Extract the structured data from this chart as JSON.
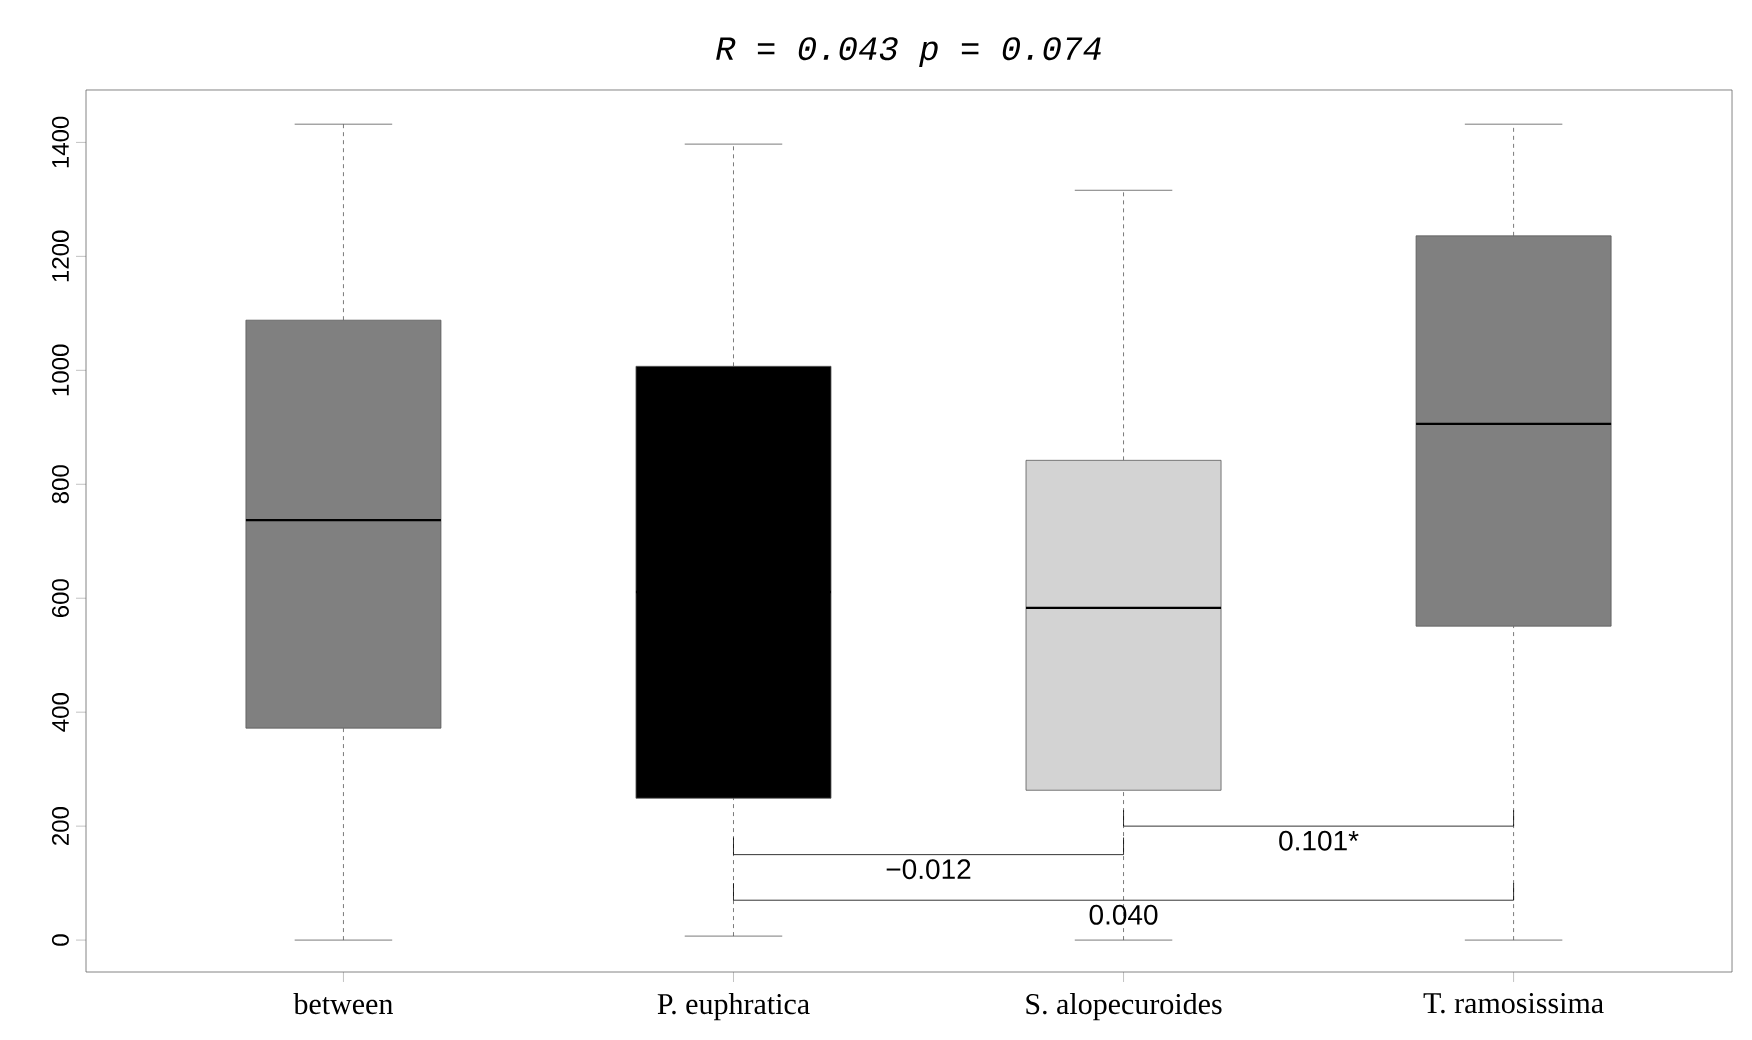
{
  "chart_data": {
    "type": "box",
    "title": "R = 0.043    p = 0.074",
    "categories": [
      "between",
      "P. euphratica",
      "S. alopecuroides",
      "T. ramosissima"
    ],
    "boxes": [
      {
        "low": 0,
        "q1": 372,
        "median": 737,
        "q3": 1088,
        "high": 1432
      },
      {
        "low": 7,
        "q1": 249,
        "median": 611,
        "q3": 1007,
        "high": 1397
      },
      {
        "low": 0,
        "q1": 263,
        "median": 583,
        "q3": 842,
        "high": 1316
      },
      {
        "low": 0,
        "q1": 551,
        "median": 906,
        "q3": 1236,
        "high": 1432
      }
    ],
    "colors": [
      "#808080",
      "#000000",
      "#d3d3d3",
      "#808080"
    ],
    "ylim": [
      -56,
      1492
    ],
    "yticks": [
      0,
      200,
      400,
      600,
      800,
      1000,
      1200,
      1400
    ],
    "annotations": [
      "−0.012",
      "0.101*",
      "0.040"
    ]
  }
}
